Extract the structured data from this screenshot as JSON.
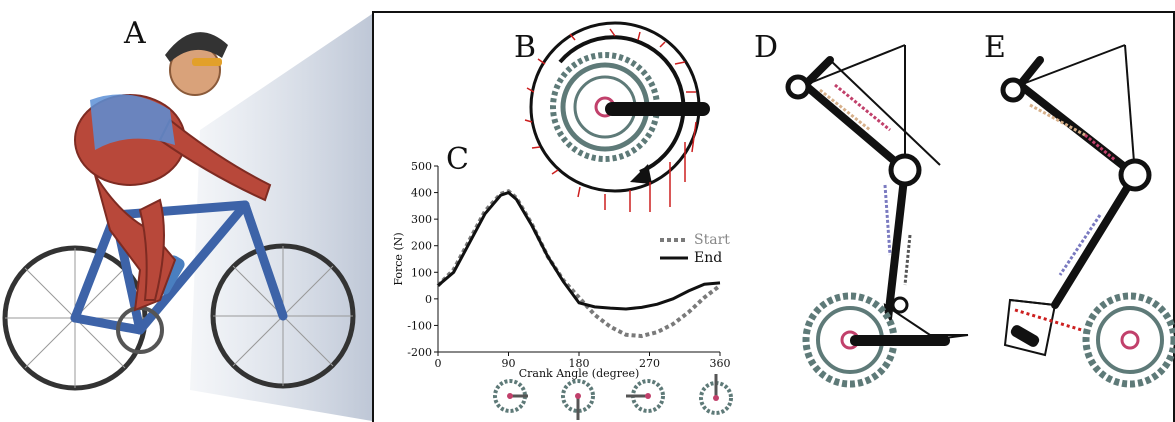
{
  "panels": {
    "a": "A",
    "b": "B",
    "c": "C",
    "d": "D",
    "e": "E"
  },
  "colors": {
    "frame": "#111111",
    "chainring": "#5e7a78",
    "arrow": "#cc1f1f",
    "start_series": "#7a7a7a",
    "end_series": "#111111",
    "bike_frame": "#3d63a8",
    "muscle": "#b8483a"
  },
  "icons": [
    "cyclist-illustration",
    "chainring-icon",
    "crank-position-icon",
    "leg-mechanism-diagram"
  ],
  "chart_data": {
    "type": "line",
    "title": "",
    "xlabel": "Crank Angle (degree)",
    "ylabel": "Force (N)",
    "xlim": [
      0,
      360
    ],
    "ylim": [
      -200,
      500
    ],
    "xticks": [
      0,
      90,
      180,
      270,
      360
    ],
    "yticks": [
      -200,
      -100,
      0,
      100,
      200,
      300,
      400,
      500
    ],
    "legend": "right",
    "series": [
      {
        "name": "Start",
        "style": "dotted",
        "x": [
          0,
          20,
          40,
          60,
          80,
          90,
          100,
          120,
          140,
          160,
          180,
          200,
          220,
          240,
          260,
          280,
          300,
          320,
          340,
          360
        ],
        "values": [
          50,
          110,
          220,
          330,
          395,
          405,
          380,
          280,
          160,
          70,
          5,
          -60,
          -105,
          -135,
          -140,
          -125,
          -95,
          -50,
          5,
          50
        ]
      },
      {
        "name": "End",
        "style": "solid",
        "x": [
          0,
          20,
          40,
          60,
          80,
          90,
          100,
          120,
          140,
          160,
          180,
          200,
          220,
          240,
          260,
          280,
          300,
          320,
          340,
          360
        ],
        "values": [
          50,
          100,
          210,
          320,
          390,
          400,
          375,
          275,
          160,
          65,
          -15,
          -30,
          -35,
          -38,
          -32,
          -20,
          0,
          30,
          55,
          60
        ]
      }
    ]
  }
}
